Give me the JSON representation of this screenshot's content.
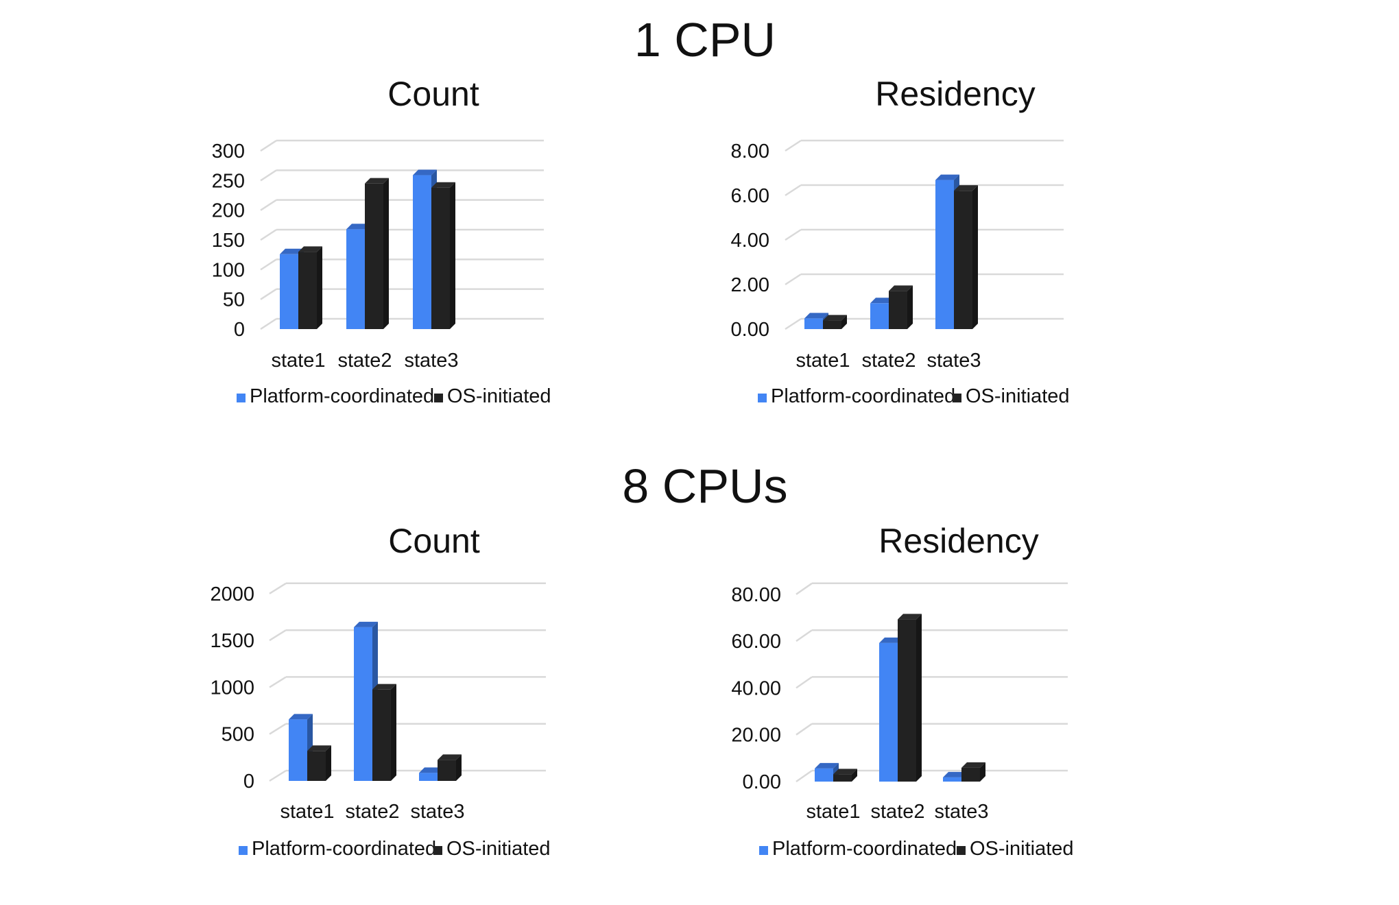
{
  "sections": [
    {
      "title": "1 CPU"
    },
    {
      "title": "8 CPUs"
    }
  ],
  "colors": {
    "platform": "#4285f4",
    "os": "#222222",
    "grid": "#d9d9d9"
  },
  "chart_data": [
    {
      "type": "bar",
      "style": "3d-clustered-column",
      "section": "1 CPU",
      "title": "Count",
      "categories": [
        "state1",
        "state2",
        "state3"
      ],
      "series": [
        {
          "name": "Platform-coordinated",
          "values": [
            126,
            168,
            259
          ]
        },
        {
          "name": "OS-initiated",
          "values": [
            130,
            245,
            238
          ]
        }
      ],
      "yticks": [
        "0",
        "50",
        "100",
        "150",
        "200",
        "250",
        "300"
      ],
      "ylim": [
        0,
        300
      ],
      "grid": true,
      "legend": "bottom"
    },
    {
      "type": "bar",
      "style": "3d-clustered-column",
      "section": "1 CPU",
      "title": "Residency",
      "categories": [
        "state1",
        "state2",
        "state3"
      ],
      "series": [
        {
          "name": "Platform-coordinated",
          "values": [
            0.48,
            1.16,
            6.69
          ]
        },
        {
          "name": "OS-initiated",
          "values": [
            0.39,
            1.71,
            6.21
          ]
        }
      ],
      "yticks": [
        "0.00",
        "2.00",
        "4.00",
        "6.00",
        "8.00"
      ],
      "ylim": [
        0,
        8
      ],
      "grid": true,
      "legend": "bottom"
    },
    {
      "type": "bar",
      "style": "3d-clustered-column",
      "section": "8 CPUs",
      "title": "Count",
      "categories": [
        "state1",
        "state2",
        "state3"
      ],
      "series": [
        {
          "name": "Platform-coordinated",
          "values": [
            656,
            1641,
            85
          ]
        },
        {
          "name": "OS-initiated",
          "values": [
            320,
            976,
            224
          ]
        }
      ],
      "yticks": [
        "0",
        "500",
        "1000",
        "1500",
        "2000"
      ],
      "ylim": [
        0,
        2000
      ],
      "grid": true,
      "legend": "bottom"
    },
    {
      "type": "bar",
      "style": "3d-clustered-column",
      "section": "8 CPUs",
      "title": "Residency",
      "categories": [
        "state1",
        "state2",
        "state3"
      ],
      "series": [
        {
          "name": "Platform-coordinated",
          "values": [
            5.6,
            59.2,
            1.8
          ]
        },
        {
          "name": "OS-initiated",
          "values": [
            3.1,
            69.3,
            5.9
          ]
        }
      ],
      "yticks": [
        "0.00",
        "20.00",
        "40.00",
        "60.00",
        "80.00"
      ],
      "ylim": [
        0,
        80
      ],
      "grid": true,
      "legend": "bottom"
    }
  ]
}
